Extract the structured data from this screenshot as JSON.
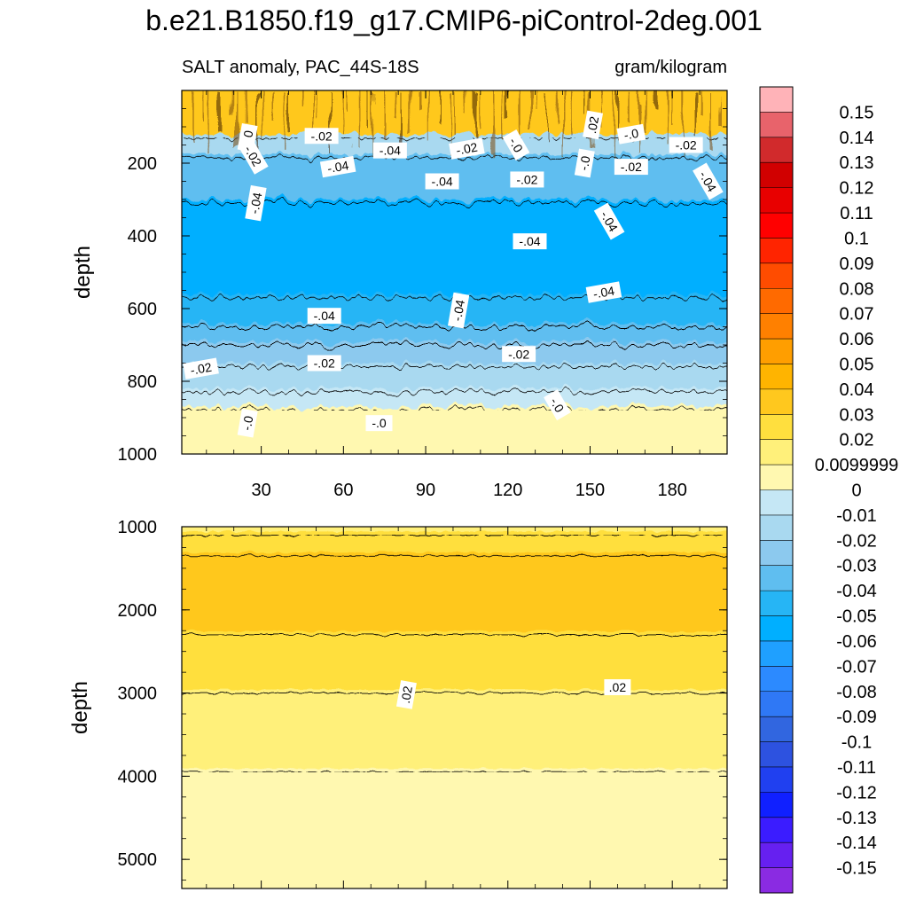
{
  "chart_data": [
    {
      "type": "heatmap",
      "title": "b.e21.B1850.f19_g17.CMIP6-piControl-2deg.001",
      "subtitle_left": "SALT anomaly, PAC_44S-18S",
      "subtitle_right": "gram/kilogram",
      "ylabel": "depth",
      "xlim": [
        1,
        200
      ],
      "ylim": [
        0,
        1000
      ],
      "y_reversed": true,
      "x_ticks": [
        30,
        60,
        90,
        120,
        150,
        180
      ],
      "y_ticks": [
        200,
        400,
        600,
        800,
        1000
      ],
      "bands": [
        {
          "top": 0,
          "bottom": 130,
          "value": 0.03
        },
        {
          "top": 130,
          "bottom": 185,
          "value": -0.015
        },
        {
          "top": 185,
          "bottom": 310,
          "value": -0.035
        },
        {
          "top": 310,
          "bottom": 570,
          "value": -0.055
        },
        {
          "top": 570,
          "bottom": 650,
          "value": -0.045
        },
        {
          "top": 650,
          "bottom": 700,
          "value": -0.035
        },
        {
          "top": 700,
          "bottom": 760,
          "value": -0.025
        },
        {
          "top": 760,
          "bottom": 830,
          "value": -0.015
        },
        {
          "top": 830,
          "bottom": 880,
          "value": -0.005
        },
        {
          "top": 880,
          "bottom": 1000,
          "value": 0.005
        }
      ],
      "contour_labels": [
        {
          "text": "-.0",
          "x": 25,
          "y": 130
        },
        {
          "text": "-.02",
          "x": 52,
          "y": 125
        },
        {
          "text": "-.04",
          "x": 77,
          "y": 165
        },
        {
          "text": "-.02",
          "x": 105,
          "y": 160
        },
        {
          "text": "-.0",
          "x": 123,
          "y": 150
        },
        {
          "text": ".02",
          "x": 151,
          "y": 95
        },
        {
          "text": "-.0",
          "x": 165,
          "y": 120
        },
        {
          "text": "-.02",
          "x": 185,
          "y": 150
        },
        {
          "text": "-.02",
          "x": 27,
          "y": 180
        },
        {
          "text": "-.04",
          "x": 58,
          "y": 210
        },
        {
          "text": "-.0",
          "x": 148,
          "y": 200
        },
        {
          "text": "-.02",
          "x": 165,
          "y": 210
        },
        {
          "text": "-.04",
          "x": 193,
          "y": 250
        },
        {
          "text": "-.02",
          "x": 127,
          "y": 245
        },
        {
          "text": "-.04",
          "x": 96,
          "y": 250
        },
        {
          "text": "-.04",
          "x": 28,
          "y": 310
        },
        {
          "text": "-.04",
          "x": 157,
          "y": 360
        },
        {
          "text": "-.04",
          "x": 128,
          "y": 415
        },
        {
          "text": "-.04",
          "x": 155,
          "y": 555
        },
        {
          "text": "-.04",
          "x": 53,
          "y": 620
        },
        {
          "text": "-.04",
          "x": 102,
          "y": 605
        },
        {
          "text": "-.02",
          "x": 8,
          "y": 765
        },
        {
          "text": "-.02",
          "x": 53,
          "y": 750
        },
        {
          "text": "-.02",
          "x": 124,
          "y": 725
        },
        {
          "text": "-.0",
          "x": 138,
          "y": 865
        },
        {
          "text": "-.0",
          "x": 25,
          "y": 915
        },
        {
          "text": "-.0",
          "x": 73,
          "y": 915
        }
      ]
    },
    {
      "type": "heatmap",
      "ylabel": "depth",
      "xlim": [
        1,
        200
      ],
      "ylim": [
        1000,
        5350
      ],
      "y_reversed": true,
      "y_ticks": [
        1000,
        2000,
        3000,
        4000,
        5000
      ],
      "bands": [
        {
          "top": 1000,
          "bottom": 1100,
          "value": 0.015
        },
        {
          "top": 1100,
          "bottom": 1350,
          "value": 0.025
        },
        {
          "top": 1350,
          "bottom": 2300,
          "value": 0.035
        },
        {
          "top": 2300,
          "bottom": 3000,
          "value": 0.025
        },
        {
          "top": 3000,
          "bottom": 3950,
          "value": 0.015
        },
        {
          "top": 3950,
          "bottom": 5350,
          "value": 0.005
        }
      ],
      "contour_labels": [
        {
          "text": ".02",
          "x": 83,
          "y": 3020
        },
        {
          "text": ".02",
          "x": 160,
          "y": 2930
        }
      ]
    }
  ],
  "colorbar": {
    "labels": [
      "0.15",
      "0.14",
      "0.13",
      "0.12",
      "0.11",
      "0.1",
      "0.09",
      "0.08",
      "0.07",
      "0.06",
      "0.05",
      "0.04",
      "0.03",
      "0.02",
      "0.0099999",
      "0",
      "-0.01",
      "-0.02",
      "-0.03",
      "-0.04",
      "-0.05",
      "-0.06",
      "-0.07",
      "-0.08",
      "-0.09",
      "-0.1",
      "-0.11",
      "-0.12",
      "-0.13",
      "-0.14",
      "-0.15"
    ],
    "colors": [
      "#FFB3B8",
      "#E8636B",
      "#D12A2C",
      "#D10000",
      "#E80000",
      "#FF0000",
      "#FF2400",
      "#FF4C00",
      "#FF6A00",
      "#FF8000",
      "#FF9E00",
      "#FFB400",
      "#FFC81E",
      "#FFDF3E",
      "#FFF07A",
      "#FFF8B0",
      "#C5E7F5",
      "#A9D9F0",
      "#8CC9EE",
      "#5FBEF0",
      "#26B5F5",
      "#00AFFF",
      "#1FA0FF",
      "#2C8AFF",
      "#2F78F5",
      "#3166E0",
      "#2D52E0",
      "#2040F0",
      "#1020FF",
      "#3B1CFF",
      "#6620F0",
      "#8A2BE2"
    ]
  }
}
